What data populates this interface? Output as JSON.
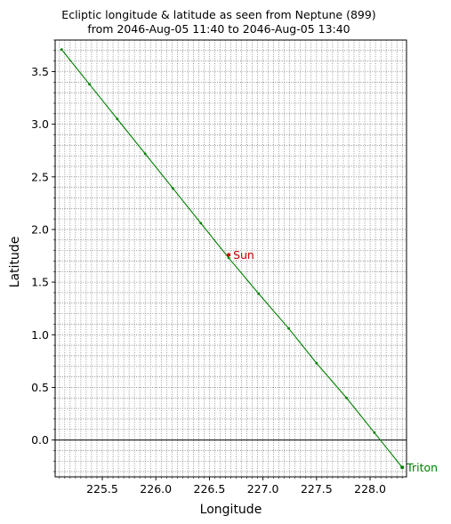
{
  "chart_data": {
    "type": "line",
    "title": "Ecliptic longitude & latitude as seen from Neptune (899)",
    "subtitle": "from 2046-Aug-05 11:40 to 2046-Aug-05 13:40",
    "xlabel": "Longitude",
    "ylabel": "Latitude",
    "xlim": [
      225.06,
      228.34
    ],
    "ylim": [
      -0.35,
      3.8
    ],
    "xticks": [
      225.5,
      226.0,
      226.5,
      227.0,
      227.5,
      228.0
    ],
    "xtick_labels": [
      "225.5",
      "226.0",
      "226.5",
      "227.0",
      "227.5",
      "228.0"
    ],
    "yticks": [
      0.0,
      0.5,
      1.0,
      1.5,
      2.0,
      2.5,
      3.0,
      3.5
    ],
    "ytick_labels": [
      "0.0",
      "0.5",
      "1.0",
      "1.5",
      "2.0",
      "2.5",
      "3.0",
      "3.5"
    ],
    "grid": true,
    "series": [
      {
        "name": "Triton",
        "color": "#008000",
        "x": [
          225.12,
          225.38,
          225.64,
          225.9,
          226.16,
          226.42,
          226.68,
          226.96,
          227.24,
          227.5,
          227.78,
          228.04,
          228.3
        ],
        "y": [
          3.71,
          3.38,
          3.05,
          2.72,
          2.39,
          2.06,
          1.73,
          1.39,
          1.06,
          0.73,
          0.4,
          0.07,
          -0.26
        ]
      }
    ],
    "annotations": [
      {
        "label": "Sun",
        "x": 226.68,
        "y": 1.76,
        "color": "#cc0000"
      },
      {
        "label": "Triton",
        "x": 228.3,
        "y": -0.26,
        "color": "#008000"
      }
    ],
    "reference_lines": [
      {
        "axis": "y",
        "value": 0.0,
        "color": "#000000"
      }
    ]
  }
}
